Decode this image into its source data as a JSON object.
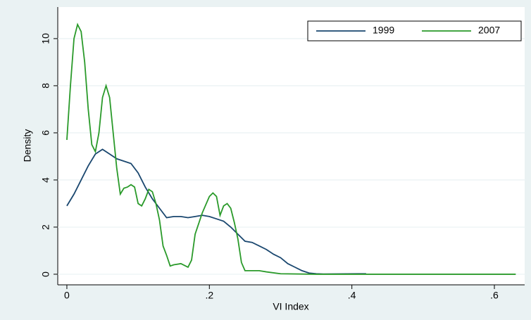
{
  "chart_data": {
    "type": "line",
    "y_label": "Density",
    "x_label": "VI Index",
    "xlim": [
      -0.0128,
      0.6425
    ],
    "ylim": [
      -0.45,
      11.34
    ],
    "xticks": [
      0,
      {
        "value": 0.2,
        "label": ".2"
      },
      {
        "value": 0.4,
        "label": ".4"
      },
      {
        "value": 0.6,
        "label": ".6"
      }
    ],
    "yticks": [
      0,
      2,
      4,
      6,
      8,
      10
    ],
    "grid": true,
    "legend": "top-right",
    "series": [
      {
        "name": "1999",
        "color": "#1a476f",
        "x": [
          0,
          0.01,
          0.02,
          0.03,
          0.04,
          0.05,
          0.06,
          0.07,
          0.08,
          0.09,
          0.1,
          0.11,
          0.12,
          0.13,
          0.14,
          0.15,
          0.16,
          0.17,
          0.18,
          0.19,
          0.2,
          0.21,
          0.22,
          0.23,
          0.24,
          0.25,
          0.26,
          0.27,
          0.28,
          0.29,
          0.3,
          0.31,
          0.32,
          0.33,
          0.34,
          0.35,
          0.36,
          0.42
        ],
        "values": [
          2.9,
          3.4,
          4.0,
          4.6,
          5.1,
          5.3,
          5.1,
          4.9,
          4.8,
          4.7,
          4.3,
          3.7,
          3.2,
          2.8,
          2.4,
          2.45,
          2.45,
          2.4,
          2.45,
          2.5,
          2.45,
          2.35,
          2.25,
          2.0,
          1.7,
          1.4,
          1.35,
          1.2,
          1.05,
          0.85,
          0.7,
          0.45,
          0.3,
          0.15,
          0.05,
          0.02,
          0.01,
          0.02
        ]
      },
      {
        "name": "2007",
        "color": "#2a9a2a",
        "x": [
          0,
          0.005,
          0.01,
          0.015,
          0.02,
          0.025,
          0.03,
          0.035,
          0.04,
          0.045,
          0.05,
          0.055,
          0.06,
          0.065,
          0.07,
          0.075,
          0.08,
          0.085,
          0.09,
          0.095,
          0.1,
          0.105,
          0.11,
          0.115,
          0.12,
          0.125,
          0.13,
          0.135,
          0.14,
          0.145,
          0.15,
          0.16,
          0.17,
          0.175,
          0.18,
          0.19,
          0.2,
          0.205,
          0.21,
          0.215,
          0.22,
          0.225,
          0.23,
          0.235,
          0.24,
          0.245,
          0.25,
          0.27,
          0.28,
          0.3,
          0.35,
          0.63
        ],
        "values": [
          5.7,
          8,
          10,
          10.6,
          10.3,
          9,
          7,
          5.5,
          5.2,
          6,
          7.5,
          8,
          7.5,
          6,
          4.5,
          3.4,
          3.65,
          3.7,
          3.8,
          3.7,
          3.0,
          2.9,
          3.2,
          3.6,
          3.5,
          3.0,
          2.3,
          1.2,
          0.8,
          0.35,
          0.4,
          0.45,
          0.3,
          0.6,
          1.7,
          2.6,
          3.3,
          3.45,
          3.3,
          2.5,
          2.9,
          3.0,
          2.8,
          2.2,
          1.5,
          0.5,
          0.15,
          0.15,
          0.1,
          0.02,
          0,
          0
        ]
      }
    ]
  }
}
